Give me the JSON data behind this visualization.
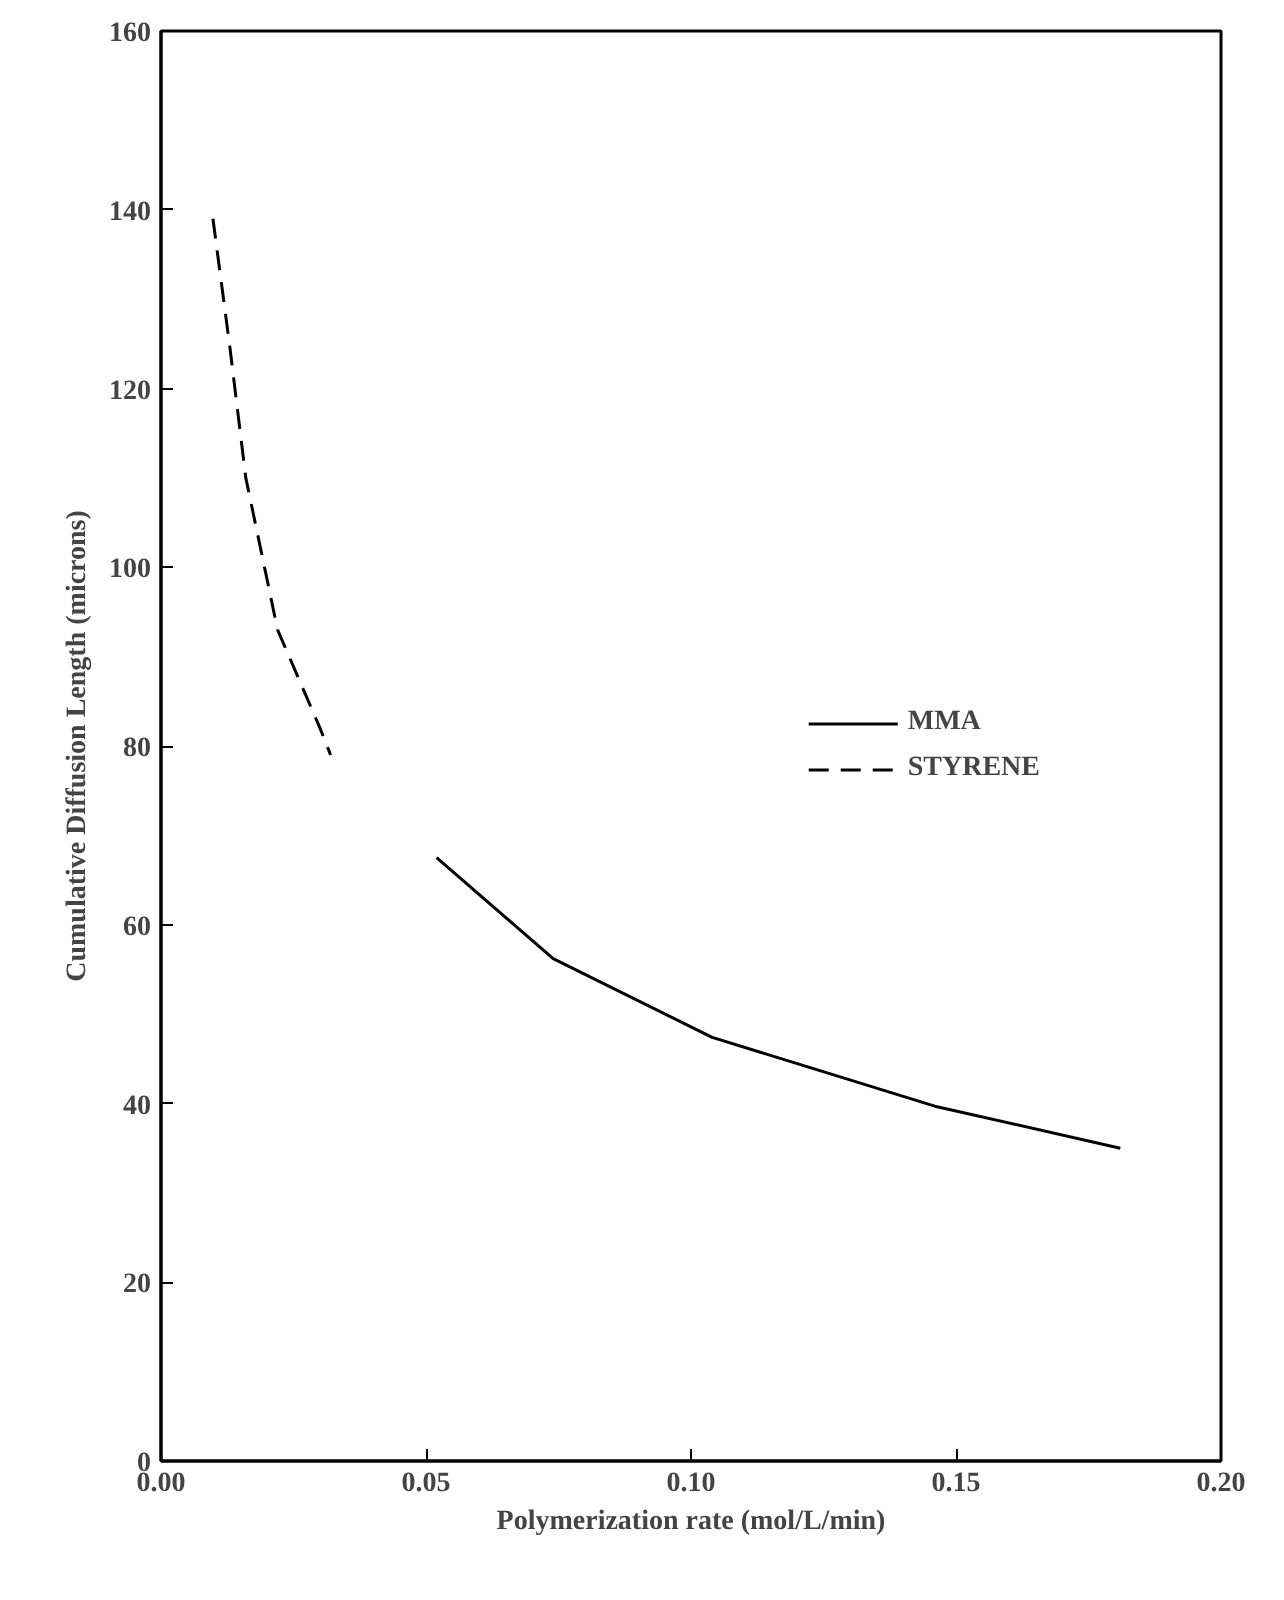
{
  "chart_data": {
    "type": "line",
    "xlabel": "Polymerization rate (mol/L/min)",
    "ylabel": "Cumulative Diffusion Length (microns)",
    "xlim": [
      0,
      0.2
    ],
    "ylim": [
      0,
      160
    ],
    "xticks": [
      {
        "value": 0,
        "label": "0.00"
      },
      {
        "value": 0.05,
        "label": "0.05"
      },
      {
        "value": 0.1,
        "label": "0.10"
      },
      {
        "value": 0.15,
        "label": "0.15"
      },
      {
        "value": 0.2,
        "label": "0.20"
      }
    ],
    "yticks": [
      0,
      20,
      40,
      60,
      80,
      100,
      120,
      140,
      160
    ],
    "grid": false,
    "legend": "right",
    "marker": "none",
    "series": [
      {
        "name": "MMA",
        "color": "#000000",
        "line_style": "solid",
        "x": [
          0.052,
          0.074,
          0.104,
          0.146,
          0.181
        ],
        "values": [
          67.5,
          56.2,
          47.4,
          39.7,
          35.0
        ]
      },
      {
        "name": "STYRENE",
        "color": "#000000",
        "line_style": "dashed",
        "x": [
          0.0098,
          0.013,
          0.016,
          0.022,
          0.03,
          0.032
        ],
        "values": [
          139,
          124.6,
          110,
          93,
          82,
          79
        ]
      }
    ]
  }
}
